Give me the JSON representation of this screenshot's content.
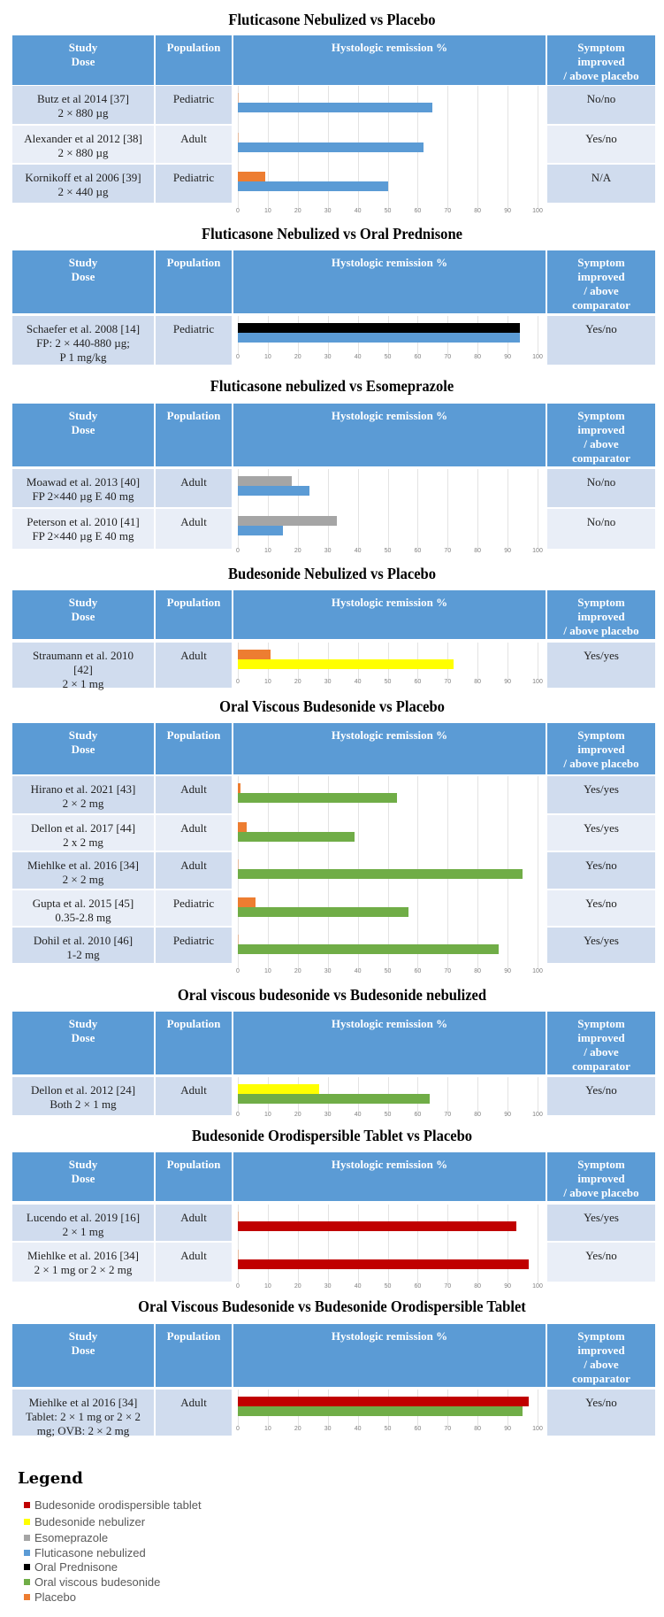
{
  "series_colors": {
    "Budesonide orodispersible tablet": "#c00000",
    "Budesonide nebulizer": "#ffff00",
    "Esomeprazole": "#a5a5a5",
    "Fluticasone nebulized": "#5b9bd5",
    "Oral Prednisone": "#000000",
    "Oral viscous budesonide": "#70ad47",
    "Placebo": "#ed7d31"
  },
  "header_color": "#5b9bd5",
  "chart_data": [
    {
      "type": "bar",
      "orientation": "horizontal",
      "title": "Fluticasone Nebulized vs Placebo",
      "xlabel": "Hystologic remission %",
      "xlim": [
        0,
        100
      ],
      "xticks": [
        "0",
        "10",
        "20",
        "30",
        "40",
        "50",
        "60",
        "70",
        "80",
        "90",
        "100"
      ],
      "headers": {
        "study": "Study",
        "dose": "Dose",
        "population": "Population",
        "remission": "Hystologic remission %",
        "symptom": [
          "Symptom",
          "improved",
          "/ above placebo"
        ]
      },
      "rows": [
        {
          "study": [
            "Butz et al 2014 [37]",
            "2 × 880 µg"
          ],
          "population": "Pediatric",
          "symptom": "No/no",
          "bars": [
            {
              "series": "Placebo",
              "value": 0
            },
            {
              "series": "Fluticasone nebulized",
              "value": 65
            }
          ]
        },
        {
          "study": [
            "Alexander et al 2012 [38]",
            "2 × 880 µg"
          ],
          "population": "Adult",
          "symptom": "Yes/no",
          "bars": [
            {
              "series": "Placebo",
              "value": 0
            },
            {
              "series": "Fluticasone nebulized",
              "value": 62
            }
          ]
        },
        {
          "study": [
            "Kornikoff et al 2006 [39]",
            "2 × 440 µg"
          ],
          "population": "Pediatric",
          "symptom": "N/A",
          "bars": [
            {
              "series": "Placebo",
              "value": 9
            },
            {
              "series": "Fluticasone nebulized",
              "value": 50
            }
          ]
        }
      ]
    },
    {
      "type": "bar",
      "orientation": "horizontal",
      "title": "Fluticasone Nebulized vs Oral Prednisone",
      "xlabel": "Hystologic remission %",
      "xlim": [
        0,
        100
      ],
      "xticks": [
        "0",
        "10",
        "20",
        "30",
        "40",
        "50",
        "60",
        "70",
        "80",
        "90",
        "100"
      ],
      "headers": {
        "study": "Study",
        "dose": "Dose",
        "population": "Population",
        "remission": "Hystologic remission %",
        "symptom": [
          "Symptom",
          "improved",
          "/ above",
          "comparator"
        ]
      },
      "rows": [
        {
          "study": [
            "Schaefer et al. 2008 [14]",
            "FP: 2 × 440-880 µg;",
            "P 1 mg/kg"
          ],
          "population": "Pediatric",
          "symptom": "Yes/no",
          "bars": [
            {
              "series": "Oral Prednisone",
              "value": 94
            },
            {
              "series": "Fluticasone nebulized",
              "value": 94
            }
          ]
        }
      ]
    },
    {
      "type": "bar",
      "orientation": "horizontal",
      "title": "Fluticasone nebulized vs Esomeprazole",
      "xlabel": "Hystologic remission %",
      "xlim": [
        0,
        100
      ],
      "xticks": [
        "0",
        "10",
        "20",
        "30",
        "40",
        "50",
        "60",
        "70",
        "80",
        "90",
        "100"
      ],
      "headers": {
        "study": "Study",
        "dose": "Dose",
        "population": "Population",
        "remission": "Hystologic remission %",
        "symptom": [
          "Symptom",
          "improved",
          "/ above",
          "comparator"
        ]
      },
      "rows": [
        {
          "study": [
            "Moawad et al. 2013 [40]",
            "FP 2×440 µg E 40 mg"
          ],
          "population": "Adult",
          "symptom": "No/no",
          "bars": [
            {
              "series": "Esomeprazole",
              "value": 18
            },
            {
              "series": "Fluticasone nebulized",
              "value": 24
            }
          ]
        },
        {
          "study": [
            "Peterson et al. 2010 [41]",
            "FP 2×440 µg E 40 mg"
          ],
          "population": "Adult",
          "symptom": "No/no",
          "bars": [
            {
              "series": "Esomeprazole",
              "value": 33
            },
            {
              "series": "Fluticasone nebulized",
              "value": 15
            }
          ]
        }
      ]
    },
    {
      "type": "bar",
      "orientation": "horizontal",
      "title": "Budesonide Nebulized vs Placebo",
      "xlabel": "Hystologic remission %",
      "xlim": [
        0,
        100
      ],
      "xticks": [
        "0",
        "10",
        "20",
        "30",
        "40",
        "50",
        "60",
        "70",
        "80",
        "90",
        "100"
      ],
      "headers": {
        "study": "Study",
        "dose": "Dose",
        "population": "Population",
        "remission": "Hystologic remission %",
        "symptom": [
          "Symptom",
          "improved",
          "/ above placebo"
        ]
      },
      "rows": [
        {
          "study": [
            "Straumann et al. 2010",
            "[42]",
            "2 × 1 mg"
          ],
          "population": "Adult",
          "symptom": "Yes/yes",
          "bars": [
            {
              "series": "Placebo",
              "value": 11
            },
            {
              "series": "Budesonide nebulizer",
              "value": 72
            }
          ]
        }
      ]
    },
    {
      "type": "bar",
      "orientation": "horizontal",
      "title": "Oral Viscous Budesonide vs Placebo",
      "xlabel": "Hystologic remission %",
      "xlim": [
        0,
        100
      ],
      "xticks": [
        "0",
        "10",
        "20",
        "30",
        "40",
        "50",
        "60",
        "70",
        "80",
        "90",
        "100"
      ],
      "headers": {
        "study": "Study",
        "dose": "Dose",
        "population": "Population",
        "remission": "Hystologic remission %",
        "symptom": [
          "Symptom",
          "improved",
          "/ above placebo"
        ]
      },
      "rows": [
        {
          "study": [
            "Hirano et al. 2021 [43]",
            "2 × 2 mg"
          ],
          "population": "Adult",
          "symptom": "Yes/yes",
          "bars": [
            {
              "series": "Placebo",
              "value": 1
            },
            {
              "series": "Oral viscous budesonide",
              "value": 53
            }
          ]
        },
        {
          "study": [
            "Dellon et al. 2017 [44]",
            "2 x 2 mg"
          ],
          "population": "Adult",
          "symptom": "Yes/yes",
          "bars": [
            {
              "series": "Placebo",
              "value": 3
            },
            {
              "series": "Oral viscous budesonide",
              "value": 39
            }
          ]
        },
        {
          "study": [
            "Miehlke et al. 2016 [34]",
            "2 × 2 mg"
          ],
          "population": "Adult",
          "symptom": "Yes/no",
          "bars": [
            {
              "series": "Placebo",
              "value": 0
            },
            {
              "series": "Oral viscous budesonide",
              "value": 95
            }
          ]
        },
        {
          "study": [
            "Gupta et al. 2015 [45]",
            "0.35-2.8 mg"
          ],
          "population": "Pediatric",
          "symptom": "Yes/no",
          "bars": [
            {
              "series": "Placebo",
              "value": 6
            },
            {
              "series": "Oral viscous budesonide",
              "value": 57
            }
          ]
        },
        {
          "study": [
            "Dohil et al. 2010 [46]",
            "1-2 mg"
          ],
          "population": "Pediatric",
          "symptom": "Yes/yes",
          "bars": [
            {
              "series": "Placebo",
              "value": 0
            },
            {
              "series": "Oral viscous budesonide",
              "value": 87
            }
          ]
        }
      ]
    },
    {
      "type": "bar",
      "orientation": "horizontal",
      "title": "Oral viscous budesonide vs Budesonide nebulized",
      "xlabel": "Hystologic remission %",
      "xlim": [
        0,
        100
      ],
      "xticks": [
        "0",
        "10",
        "20",
        "30",
        "40",
        "50",
        "60",
        "70",
        "80",
        "90",
        "100"
      ],
      "headers": {
        "study": "Study",
        "dose": "Dose",
        "population": "Population",
        "remission": "Hystologic remission %",
        "symptom": [
          "Symptom",
          "improved",
          "/ above",
          "comparator"
        ]
      },
      "rows": [
        {
          "study": [
            "Dellon et al. 2012 [24]",
            "Both 2 × 1 mg"
          ],
          "population": "Adult",
          "symptom": "Yes/no",
          "bars": [
            {
              "series": "Budesonide nebulizer",
              "value": 27
            },
            {
              "series": "Oral viscous budesonide",
              "value": 64
            }
          ]
        }
      ]
    },
    {
      "type": "bar",
      "orientation": "horizontal",
      "title": "Budesonide Orodispersible Tablet vs Placebo",
      "xlabel": "Hystologic remission %",
      "xlim": [
        0,
        100
      ],
      "xticks": [
        "0",
        "10",
        "20",
        "30",
        "40",
        "50",
        "60",
        "70",
        "80",
        "90",
        "100"
      ],
      "headers": {
        "study": "Study",
        "dose": "Dose",
        "population": "Population",
        "remission": "Hystologic remission %",
        "symptom": [
          "Symptom",
          "improved",
          "/ above placebo"
        ]
      },
      "rows": [
        {
          "study": [
            "Lucendo et al. 2019 [16]",
            "2 × 1 mg"
          ],
          "population": "Adult",
          "symptom": "Yes/yes",
          "bars": [
            {
              "series": "Placebo",
              "value": 0
            },
            {
              "series": "Budesonide orodispersible tablet",
              "value": 93
            }
          ]
        },
        {
          "study": [
            "Miehlke et al. 2016 [34]",
            "2 × 1 mg or 2 × 2 mg"
          ],
          "population": "Adult",
          "symptom": "Yes/no",
          "bars": [
            {
              "series": "Placebo",
              "value": 0
            },
            {
              "series": "Budesonide orodispersible tablet",
              "value": 97
            }
          ]
        }
      ]
    },
    {
      "type": "bar",
      "orientation": "horizontal",
      "title": "Oral Viscous Budesonide vs Budesonide Orodispersible Tablet",
      "xlabel": "Hystologic remission %",
      "xlim": [
        0,
        100
      ],
      "xticks": [
        "0",
        "10",
        "20",
        "30",
        "40",
        "50",
        "60",
        "70",
        "80",
        "90",
        "100"
      ],
      "headers": {
        "study": "Study",
        "dose": "Dose",
        "population": "Population",
        "remission": "Hystologic remission %",
        "symptom": [
          "Symptom",
          "improved",
          "/ above",
          "comparator"
        ]
      },
      "rows": [
        {
          "study": [
            "Miehlke et al 2016 [34]",
            "Tablet: 2 × 1 mg or 2 × 2",
            "mg; OVB: 2 × 2 mg"
          ],
          "population": "Adult",
          "symptom": "Yes/no",
          "bars": [
            {
              "series": "Budesonide orodispersible tablet",
              "value": 97
            },
            {
              "series": "Oral viscous budesonide",
              "value": 95
            }
          ]
        }
      ]
    }
  ],
  "legend": {
    "title": "Legend",
    "items": [
      "Budesonide orodispersible tablet",
      "Budesonide nebulizer",
      "Esomeprazole",
      "Fluticasone nebulized",
      "Oral Prednisone",
      "Oral viscous budesonide",
      "Placebo"
    ]
  }
}
